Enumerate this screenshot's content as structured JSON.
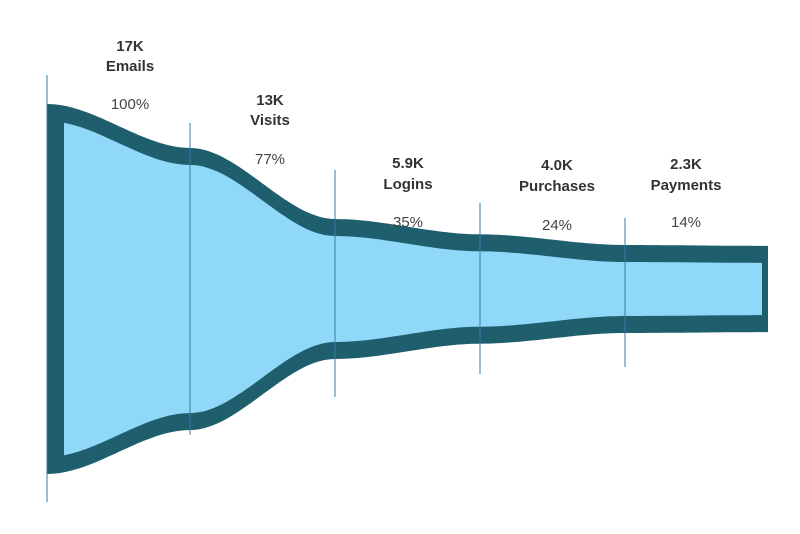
{
  "chart_data": {
    "type": "funnel",
    "colors": {
      "fill": "#8fd8f8",
      "border": "#1f5e6c",
      "divider": "#3a78a8"
    },
    "stages": [
      {
        "name": "Emails",
        "value_label": "17K",
        "value": 17000,
        "percent_label": "100%",
        "percent": 100
      },
      {
        "name": "Visits",
        "value_label": "13K",
        "value": 13000,
        "percent_label": "77%",
        "percent": 77
      },
      {
        "name": "Logins",
        "value_label": "5.9K",
        "value": 5900,
        "percent_label": "35%",
        "percent": 35
      },
      {
        "name": "Purchases",
        "value_label": "4.0K",
        "value": 4000,
        "percent_label": "24%",
        "percent": 24
      },
      {
        "name": "Payments",
        "value_label": "2.3K",
        "value": 2300,
        "percent_label": "14%",
        "percent": 14
      }
    ]
  }
}
